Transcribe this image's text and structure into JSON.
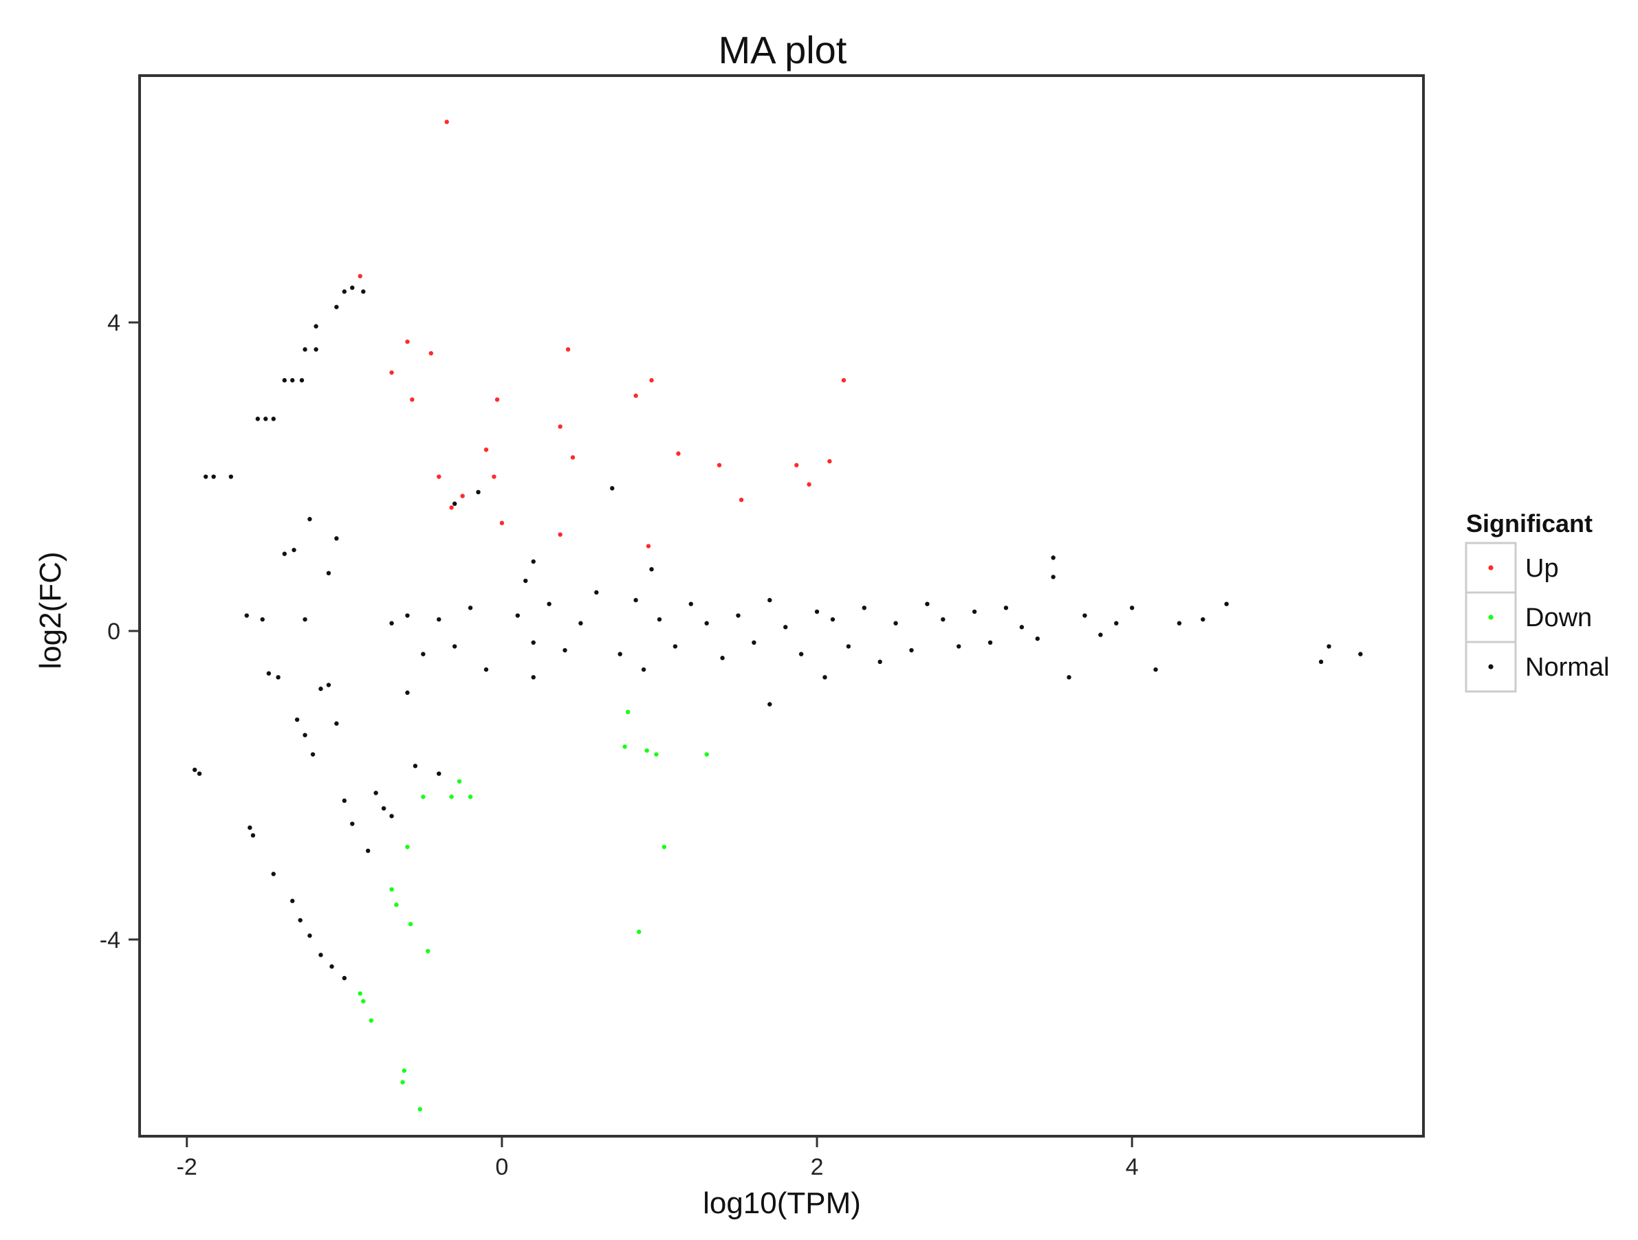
{
  "colors": {
    "Up": "#ff2a2a",
    "Down": "#16ff16",
    "Normal": "#111111"
  },
  "chart_data": {
    "type": "scatter",
    "title": "MA plot",
    "xlabel": "log10(TPM)",
    "ylabel": "log2(FC)",
    "xlim": [
      -2.3,
      5.85
    ],
    "ylim": [
      -6.55,
      7.2
    ],
    "xticks": [
      -2,
      0,
      2,
      4
    ],
    "yticks": [
      -4,
      0,
      4
    ],
    "xtick_labels": [
      "-2",
      "0",
      "2",
      "4"
    ],
    "ytick_labels": [
      "-4",
      "0",
      "4"
    ],
    "grid": false,
    "legend": {
      "title": "Significant",
      "position": "right",
      "entries": [
        "Up",
        "Down",
        "Normal"
      ]
    },
    "series": [
      {
        "name": "Up",
        "color": "#ff2a2a",
        "points": [
          [
            -0.35,
            6.6
          ],
          [
            -0.9,
            4.6
          ],
          [
            -0.6,
            3.75
          ],
          [
            -0.45,
            3.6
          ],
          [
            -0.7,
            3.35
          ],
          [
            -0.57,
            3.0
          ],
          [
            -0.4,
            2.0
          ],
          [
            -0.25,
            1.75
          ],
          [
            -0.32,
            1.6
          ],
          [
            -0.1,
            2.35
          ],
          [
            -0.05,
            2.0
          ],
          [
            -0.03,
            3.0
          ],
          [
            0.0,
            1.4
          ],
          [
            0.37,
            2.65
          ],
          [
            0.42,
            3.65
          ],
          [
            0.45,
            2.25
          ],
          [
            0.37,
            1.25
          ],
          [
            0.85,
            3.05
          ],
          [
            0.95,
            3.25
          ],
          [
            0.93,
            1.1
          ],
          [
            1.12,
            2.3
          ],
          [
            1.38,
            2.15
          ],
          [
            1.52,
            1.7
          ],
          [
            1.87,
            2.15
          ],
          [
            1.95,
            1.9
          ],
          [
            2.08,
            2.2
          ],
          [
            2.17,
            3.25
          ]
        ]
      },
      {
        "name": "Down",
        "color": "#16ff16",
        "points": [
          [
            0.8,
            -1.05
          ],
          [
            0.78,
            -1.5
          ],
          [
            0.92,
            -1.55
          ],
          [
            0.98,
            -1.6
          ],
          [
            1.3,
            -1.6
          ],
          [
            1.03,
            -2.8
          ],
          [
            0.87,
            -3.9
          ],
          [
            -0.2,
            -2.15
          ],
          [
            -0.27,
            -1.95
          ],
          [
            -0.32,
            -2.15
          ],
          [
            -0.5,
            -2.15
          ],
          [
            -0.6,
            -2.8
          ],
          [
            -0.7,
            -3.35
          ],
          [
            -0.67,
            -3.55
          ],
          [
            -0.58,
            -3.8
          ],
          [
            -0.47,
            -4.15
          ],
          [
            -0.9,
            -4.7
          ],
          [
            -0.88,
            -4.8
          ],
          [
            -0.83,
            -5.05
          ],
          [
            -0.62,
            -5.7
          ],
          [
            -0.63,
            -5.85
          ],
          [
            -0.52,
            -6.2
          ]
        ]
      },
      {
        "name": "Normal",
        "color": "#111111",
        "points": [
          [
            -1.95,
            -1.8
          ],
          [
            -1.92,
            -1.85
          ],
          [
            -1.6,
            -2.55
          ],
          [
            -1.58,
            -2.65
          ],
          [
            -1.45,
            -3.15
          ],
          [
            -1.33,
            -3.5
          ],
          [
            -1.28,
            -3.75
          ],
          [
            -1.22,
            -3.95
          ],
          [
            -1.15,
            -4.2
          ],
          [
            -1.08,
            -4.35
          ],
          [
            -1.0,
            -4.5
          ],
          [
            -1.88,
            2.0
          ],
          [
            -1.83,
            2.0
          ],
          [
            -1.72,
            2.0
          ],
          [
            -1.55,
            2.75
          ],
          [
            -1.5,
            2.75
          ],
          [
            -1.45,
            2.75
          ],
          [
            -1.38,
            3.25
          ],
          [
            -1.33,
            3.25
          ],
          [
            -1.27,
            3.25
          ],
          [
            -1.25,
            3.65
          ],
          [
            -1.18,
            3.65
          ],
          [
            -1.18,
            3.95
          ],
          [
            -1.05,
            4.2
          ],
          [
            -1.0,
            4.4
          ],
          [
            -0.95,
            4.45
          ],
          [
            -0.88,
            4.4
          ],
          [
            -1.62,
            0.2
          ],
          [
            -1.52,
            0.15
          ],
          [
            -1.38,
            1.0
          ],
          [
            -1.32,
            1.05
          ],
          [
            -1.25,
            0.15
          ],
          [
            -1.22,
            1.45
          ],
          [
            -1.1,
            0.75
          ],
          [
            -1.05,
            1.2
          ],
          [
            -1.48,
            -0.55
          ],
          [
            -1.42,
            -0.6
          ],
          [
            -1.3,
            -1.15
          ],
          [
            -1.25,
            -1.35
          ],
          [
            -1.2,
            -1.6
          ],
          [
            -1.15,
            -0.75
          ],
          [
            -1.1,
            -0.7
          ],
          [
            -1.05,
            -1.2
          ],
          [
            -1.0,
            -2.2
          ],
          [
            -0.95,
            -2.5
          ],
          [
            -0.85,
            -2.85
          ],
          [
            -0.8,
            -2.1
          ],
          [
            -0.75,
            -2.3
          ],
          [
            -0.7,
            -2.4
          ],
          [
            -0.55,
            -1.75
          ],
          [
            -0.4,
            -1.85
          ],
          [
            -0.7,
            0.1
          ],
          [
            -0.6,
            0.2
          ],
          [
            -0.5,
            -0.3
          ],
          [
            -0.4,
            0.15
          ],
          [
            -0.3,
            -0.2
          ],
          [
            -0.2,
            0.3
          ],
          [
            -0.1,
            -0.5
          ],
          [
            0.1,
            0.2
          ],
          [
            0.2,
            -0.15
          ],
          [
            0.3,
            0.35
          ],
          [
            0.4,
            -0.25
          ],
          [
            0.5,
            0.1
          ],
          [
            0.6,
            0.5
          ],
          [
            0.7,
            1.85
          ],
          [
            0.75,
            -0.3
          ],
          [
            0.85,
            0.4
          ],
          [
            0.9,
            -0.5
          ],
          [
            1.0,
            0.15
          ],
          [
            1.1,
            -0.2
          ],
          [
            1.2,
            0.35
          ],
          [
            1.3,
            0.1
          ],
          [
            1.4,
            -0.35
          ],
          [
            1.5,
            0.2
          ],
          [
            1.6,
            -0.15
          ],
          [
            1.7,
            0.4
          ],
          [
            1.8,
            0.05
          ],
          [
            1.9,
            -0.3
          ],
          [
            2.0,
            0.25
          ],
          [
            2.1,
            0.15
          ],
          [
            2.2,
            -0.2
          ],
          [
            2.3,
            0.3
          ],
          [
            2.4,
            -0.4
          ],
          [
            2.5,
            0.1
          ],
          [
            2.6,
            -0.25
          ],
          [
            2.7,
            0.35
          ],
          [
            2.8,
            0.15
          ],
          [
            2.9,
            -0.2
          ],
          [
            3.0,
            0.25
          ],
          [
            3.1,
            -0.15
          ],
          [
            3.2,
            0.3
          ],
          [
            3.3,
            0.05
          ],
          [
            3.4,
            -0.1
          ],
          [
            3.5,
            0.95
          ],
          [
            3.5,
            0.7
          ],
          [
            3.6,
            -0.6
          ],
          [
            3.7,
            0.2
          ],
          [
            3.8,
            -0.05
          ],
          [
            3.9,
            0.1
          ],
          [
            4.0,
            0.3
          ],
          [
            4.15,
            -0.5
          ],
          [
            4.3,
            0.1
          ],
          [
            4.45,
            0.15
          ],
          [
            4.6,
            0.35
          ],
          [
            5.2,
            -0.4
          ],
          [
            5.25,
            -0.2
          ],
          [
            5.45,
            -0.3
          ],
          [
            -0.3,
            1.65
          ],
          [
            -0.15,
            1.8
          ],
          [
            0.2,
            0.9
          ],
          [
            0.15,
            0.65
          ],
          [
            0.95,
            0.8
          ],
          [
            1.7,
            -0.95
          ],
          [
            2.05,
            -0.6
          ],
          [
            0.2,
            -0.6
          ],
          [
            -0.6,
            -0.8
          ]
        ]
      }
    ]
  }
}
